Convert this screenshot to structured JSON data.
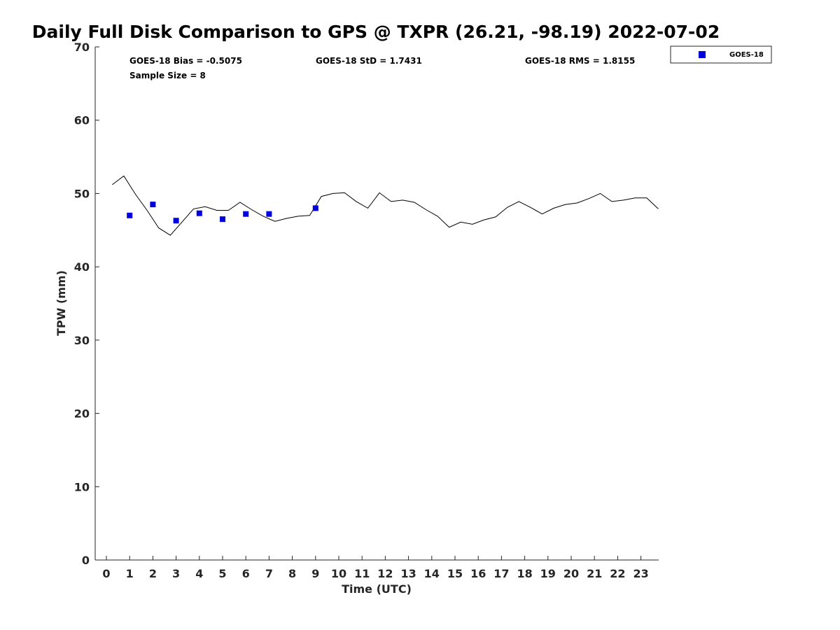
{
  "chart_data": {
    "type": "scatter",
    "title": "Daily Full Disk Comparison to GPS @ TXPR (26.21, -98.19) 2022-07-02",
    "xlabel": "Time (UTC)",
    "ylabel": "TPW (mm)",
    "xlim": [
      -0.5,
      23.75
    ],
    "ylim": [
      0,
      70
    ],
    "x_ticks": [
      0,
      1,
      2,
      3,
      4,
      5,
      6,
      7,
      8,
      9,
      10,
      11,
      12,
      13,
      14,
      15,
      16,
      17,
      18,
      19,
      20,
      21,
      22,
      23
    ],
    "y_ticks": [
      0,
      10,
      20,
      30,
      40,
      50,
      60,
      70
    ],
    "grid": false,
    "legend_position": "top-right, outside plot",
    "stats": {
      "bias": "GOES-18 Bias = -0.5075",
      "std": "GOES-18 StD = 1.7431",
      "rms": "GOES-18 RMS = 1.8155",
      "sample_size": "Sample Size = 8"
    },
    "series": [
      {
        "name": "GOES-18",
        "kind": "markers",
        "marker": "square",
        "color": "#0000dd",
        "x": [
          1,
          2,
          3,
          4,
          5,
          6,
          7,
          9
        ],
        "y": [
          47.0,
          48.5,
          46.3,
          47.3,
          46.5,
          47.2,
          47.2,
          48.0
        ]
      },
      {
        "kind": "line",
        "color": "#000000",
        "x": [
          0.25,
          0.75,
          1.25,
          1.75,
          2.25,
          2.75,
          3.25,
          3.75,
          4.25,
          4.75,
          5.25,
          5.75,
          6.25,
          6.75,
          7.25,
          7.75,
          8.25,
          8.75,
          9.25,
          9.75,
          10.25,
          10.75,
          11.25,
          11.75,
          12.25,
          12.75,
          13.25,
          13.75,
          14.25,
          14.75,
          15.25,
          15.75,
          16.25,
          16.75,
          17.25,
          17.75,
          18.25,
          18.75,
          19.25,
          19.75,
          20.25,
          20.75,
          21.25,
          21.75,
          22.25,
          22.75,
          23.25,
          23.75
        ],
        "y": [
          51.2,
          52.4,
          49.9,
          47.7,
          45.3,
          44.3,
          46.1,
          47.9,
          48.2,
          47.7,
          47.7,
          48.8,
          47.8,
          46.9,
          46.2,
          46.6,
          46.9,
          47.0,
          49.6,
          50.0,
          50.1,
          48.9,
          48.0,
          50.1,
          48.9,
          49.1,
          48.8,
          47.8,
          46.9,
          45.4,
          46.1,
          45.8,
          46.4,
          46.8,
          48.1,
          48.9,
          48.1,
          47.2,
          48.0,
          48.5,
          48.7,
          49.3,
          50.0,
          48.9,
          49.1,
          49.4,
          49.4,
          47.9
        ]
      }
    ]
  },
  "legend": {
    "label": "GOES-18"
  }
}
